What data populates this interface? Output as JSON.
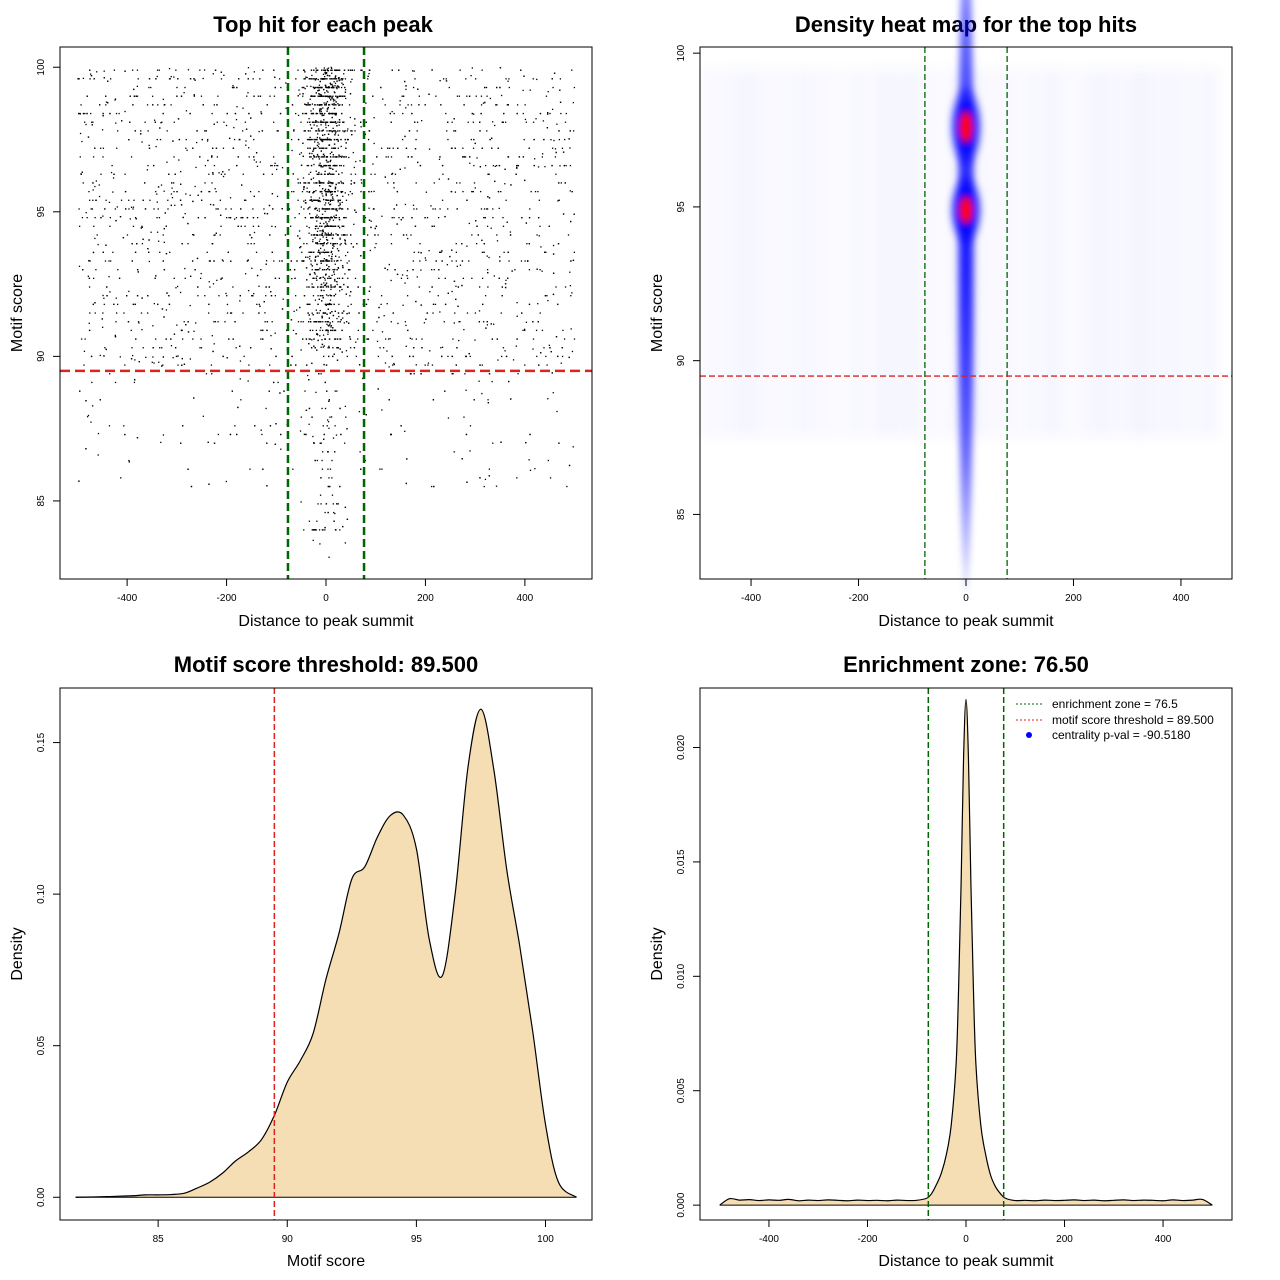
{
  "chart_data": [
    {
      "type": "scatter",
      "title": "Top hit for each peak",
      "xlabel": "Distance to peak summit",
      "ylabel": "Motif score",
      "xlim": [
        -535,
        535
      ],
      "ylim": [
        82.3,
        100.7
      ],
      "xticks": [
        "-400",
        "-200",
        "0",
        "200",
        "400"
      ],
      "xtick_values": [
        -400,
        -200,
        0,
        200,
        400
      ],
      "yticks": [
        "85",
        "90",
        "95",
        "100"
      ],
      "ytick_values": [
        85,
        90,
        95,
        100
      ],
      "vlines": [
        -76.5,
        76.5
      ],
      "hline": 89.5,
      "vline_color": "#006400",
      "hline_color": "#dd2222",
      "point_color": "#000000",
      "n_points": 4200
    },
    {
      "type": "heatmap",
      "title": "Density heat map for the top hits",
      "xlabel": "Distance to peak summit",
      "ylabel": "Motif score",
      "xlim": [
        -495,
        495
      ],
      "ylim": [
        82.9,
        100.2
      ],
      "xticks": [
        "-400",
        "-200",
        "0",
        "200",
        "400"
      ],
      "xtick_values": [
        -400,
        -200,
        0,
        200,
        400
      ],
      "yticks": [
        "85",
        "90",
        "95",
        "100"
      ],
      "ytick_values": [
        85,
        90,
        95,
        100
      ],
      "vlines": [
        -76.5,
        76.5
      ],
      "hline": 89.5,
      "vline_color": "#006400",
      "hline_color": "#dd2222",
      "colors": [
        "#ffffff",
        "#0000ff",
        "#ff0000"
      ]
    },
    {
      "type": "area",
      "title": "Motif score threshold: 89.500",
      "xlabel": "Motif score",
      "ylabel": "Density",
      "xlim": [
        81.2,
        101.8
      ],
      "ylim": [
        -0.0075,
        0.168
      ],
      "xticks": [
        "85",
        "90",
        "95",
        "100"
      ],
      "xtick_values": [
        85,
        90,
        95,
        100
      ],
      "yticks": [
        "0.00",
        "0.05",
        "0.10",
        "0.15"
      ],
      "ytick_values": [
        0,
        0.05,
        0.1,
        0.15
      ],
      "vline": 89.5,
      "vline_color": "#dd2222",
      "fill": "#f5deb3",
      "x": [
        81.8,
        83,
        84,
        84.5,
        85,
        85.5,
        86,
        86.5,
        87,
        87.5,
        88,
        88.5,
        89,
        89.5,
        90,
        90.5,
        91,
        91.5,
        92,
        92.5,
        93,
        93.5,
        94,
        94.5,
        95,
        95.5,
        96,
        96.5,
        97,
        97.5,
        98,
        98.5,
        99,
        99.5,
        100,
        100.5,
        101.2
      ],
      "y": [
        0,
        0.0002,
        0.0005,
        0.0008,
        0.0008,
        0.0009,
        0.0013,
        0.003,
        0.005,
        0.008,
        0.012,
        0.015,
        0.019,
        0.027,
        0.038,
        0.045,
        0.054,
        0.072,
        0.087,
        0.105,
        0.109,
        0.119,
        0.126,
        0.126,
        0.115,
        0.085,
        0.073,
        0.1,
        0.142,
        0.161,
        0.141,
        0.108,
        0.083,
        0.055,
        0.024,
        0.005,
        0
      ]
    },
    {
      "type": "area",
      "title": "Enrichment zone: 76.50",
      "xlabel": "Distance to peak summit",
      "ylabel": "Density",
      "xlim": [
        -540,
        540
      ],
      "ylim": [
        -0.00065,
        0.0226
      ],
      "xticks": [
        "-400",
        "-200",
        "0",
        "200",
        "400"
      ],
      "xtick_values": [
        -400,
        -200,
        0,
        200,
        400
      ],
      "yticks": [
        "0.000",
        "0.005",
        "0.010",
        "0.015",
        "0.020"
      ],
      "ytick_values": [
        0,
        0.005,
        0.01,
        0.015,
        0.02
      ],
      "vlines": [
        -76.5,
        76.5
      ],
      "vline_color": "#006400",
      "fill": "#f5deb3",
      "x": [
        -500,
        -480,
        -460,
        -440,
        -420,
        -400,
        -380,
        -360,
        -340,
        -320,
        -300,
        -280,
        -260,
        -240,
        -220,
        -200,
        -180,
        -160,
        -140,
        -120,
        -100,
        -80,
        -70,
        -60,
        -50,
        -40,
        -30,
        -20,
        -15,
        -10,
        -5,
        0,
        5,
        10,
        15,
        20,
        30,
        40,
        50,
        60,
        70,
        80,
        100,
        120,
        140,
        160,
        180,
        200,
        220,
        240,
        260,
        280,
        300,
        320,
        340,
        360,
        380,
        400,
        420,
        440,
        460,
        480,
        500
      ],
      "y": [
        0,
        0.00028,
        0.00022,
        0.00024,
        0.0002,
        0.00023,
        0.00021,
        0.00025,
        0.00019,
        0.00022,
        0.0002,
        0.00023,
        0.00021,
        0.00019,
        0.00022,
        0.0002,
        0.00021,
        0.00019,
        0.00022,
        0.0002,
        0.00021,
        0.0003,
        0.0005,
        0.0009,
        0.0014,
        0.0022,
        0.0035,
        0.0062,
        0.0095,
        0.014,
        0.0195,
        0.0221,
        0.0195,
        0.014,
        0.0095,
        0.0062,
        0.0035,
        0.0022,
        0.0013,
        0.0008,
        0.0005,
        0.0003,
        0.0002,
        0.00021,
        0.00019,
        0.00022,
        0.0002,
        0.00021,
        0.00023,
        0.0002,
        0.00022,
        0.00019,
        0.00021,
        0.00023,
        0.0002,
        0.00022,
        0.00021,
        0.00019,
        0.00023,
        0.0002,
        0.00022,
        0.00025,
        0
      ]
    }
  ],
  "legend": {
    "items": [
      {
        "label": "enrichment zone = 76.5",
        "color": "#006400",
        "symbol": "dotted"
      },
      {
        "label": "motif score threshold = 89.500",
        "color": "#dd2222",
        "symbol": "dotted"
      },
      {
        "label": "centrality p-val = -90.5180",
        "color": "#0000ff",
        "symbol": "dot"
      }
    ]
  }
}
